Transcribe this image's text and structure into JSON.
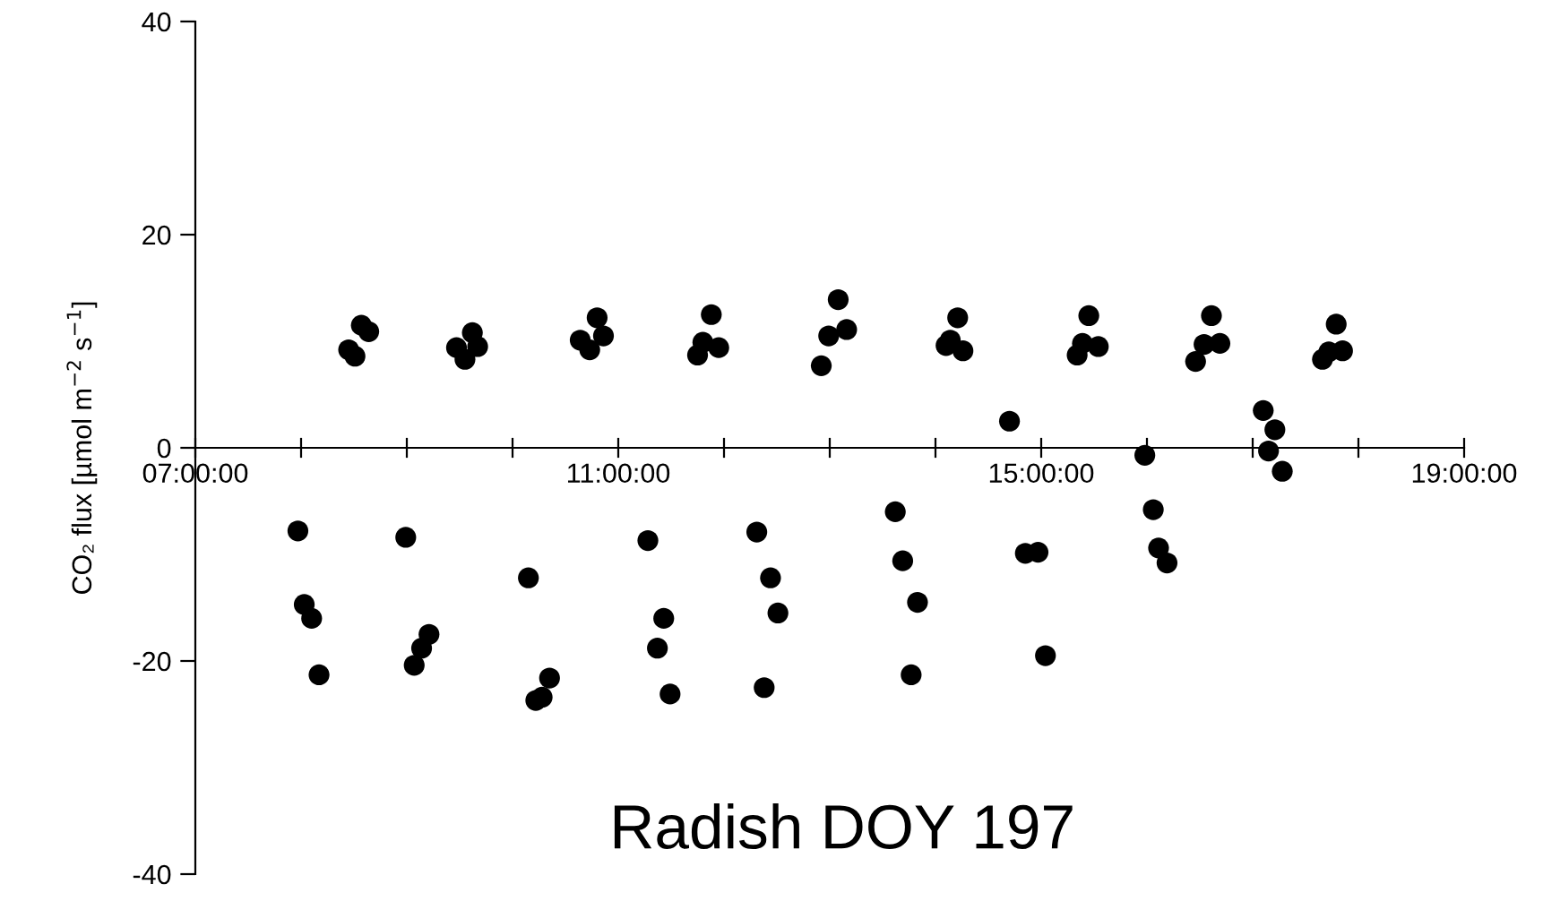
{
  "chart_data": {
    "type": "scatter",
    "title": "Radish DOY 197",
    "ylabel": "CO₂ flux [µmol m$^{−2}$ s$^{−1}$]",
    "marker": "circle",
    "grid": false,
    "legend": false,
    "xlim": [
      7,
      19
    ],
    "ylim": [
      -40,
      40
    ],
    "xticks": [
      {
        "value": 7,
        "label": "07:00:00"
      },
      {
        "value": 8,
        "label": null
      },
      {
        "value": 9,
        "label": null
      },
      {
        "value": 10,
        "label": null
      },
      {
        "value": 11,
        "label": "11:00:00"
      },
      {
        "value": 12,
        "label": null
      },
      {
        "value": 13,
        "label": null
      },
      {
        "value": 14,
        "label": null
      },
      {
        "value": 15,
        "label": "15:00:00"
      },
      {
        "value": 16,
        "label": null
      },
      {
        "value": 17,
        "label": null
      },
      {
        "value": 18,
        "label": null
      },
      {
        "value": 19,
        "label": "19:00:00"
      }
    ],
    "yticks": [
      -40,
      -20,
      0,
      20,
      40
    ],
    "series": [
      {
        "color": "#000000",
        "x": [
          8.45,
          8.51,
          8.57,
          8.64,
          9.47,
          9.55,
          9.62,
          9.67,
          10.64,
          10.73,
          10.8,
          10.86,
          11.75,
          11.8,
          11.88,
          11.95,
          12.92,
          12.99,
          13.08,
          13.16,
          14.1,
          14.14,
          14.21,
          14.26,
          14.7,
          15.34,
          15.39,
          15.45,
          15.54,
          16.46,
          16.54,
          16.61,
          16.69,
          17.66,
          17.72,
          17.79,
          17.85,
          17.1,
          17.21,
          17.15,
          17.28,
          15.98,
          16.06,
          7.97,
          8.03,
          8.1,
          8.17,
          8.99,
          9.07,
          9.14,
          9.21,
          10.15,
          10.22,
          10.28,
          10.35,
          11.28,
          11.37,
          11.43,
          11.49,
          12.31,
          12.38,
          12.44,
          12.51,
          13.62,
          13.69,
          13.83,
          13.77,
          14.85,
          14.97,
          15.04,
          16.11,
          16.19
        ],
        "values": [
          9.2,
          8.6,
          11.5,
          10.9,
          9.4,
          8.3,
          10.8,
          9.5,
          10.1,
          9.2,
          12.2,
          10.5,
          8.7,
          9.9,
          12.5,
          9.4,
          7.7,
          10.5,
          13.9,
          11.1,
          9.6,
          10.1,
          12.2,
          9.1,
          2.5,
          8.7,
          9.8,
          12.4,
          9.5,
          8.1,
          9.7,
          12.4,
          9.8,
          8.3,
          9.0,
          11.6,
          9.1,
          3.5,
          1.7,
          -0.3,
          -2.2,
          -0.7,
          -5.8,
          -7.8,
          -14.7,
          -16.0,
          -21.3,
          -8.4,
          -20.4,
          -18.8,
          -17.5,
          -12.2,
          -23.7,
          -23.4,
          -21.6,
          -8.7,
          -18.8,
          -16.0,
          -23.1,
          -7.9,
          -22.5,
          -12.2,
          -15.5,
          -6.0,
          -10.6,
          -14.5,
          -21.3,
          -9.9,
          -9.8,
          -19.5,
          -9.4,
          -10.8
        ]
      }
    ]
  }
}
